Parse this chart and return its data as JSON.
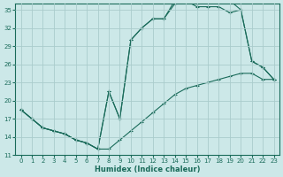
{
  "xlabel": "Humidex (Indice chaleur)",
  "ylabel": "",
  "xlim": [
    -0.5,
    23.5
  ],
  "ylim": [
    11,
    36
  ],
  "yticks": [
    11,
    14,
    17,
    20,
    23,
    26,
    29,
    32,
    35
  ],
  "xticks": [
    0,
    1,
    2,
    3,
    4,
    5,
    6,
    7,
    8,
    9,
    10,
    11,
    12,
    13,
    14,
    15,
    16,
    17,
    18,
    19,
    20,
    21,
    22,
    23
  ],
  "bg_color": "#cce8e8",
  "grid_color": "#aacccc",
  "line_color": "#1a6b5a",
  "line1_x": [
    0,
    1,
    2,
    3,
    4,
    5,
    6,
    7,
    8,
    9,
    10,
    11,
    12,
    13,
    14,
    15,
    16,
    17,
    18,
    19,
    20,
    21,
    22,
    23
  ],
  "line1_y": [
    18.5,
    17.0,
    15.5,
    15.0,
    14.5,
    13.5,
    13.0,
    12.0,
    12.0,
    13.5,
    15.0,
    16.5,
    18.0,
    19.5,
    21.0,
    22.0,
    22.5,
    23.0,
    23.5,
    24.0,
    24.5,
    24.5,
    23.5,
    23.5
  ],
  "line2_x": [
    0,
    1,
    2,
    3,
    4,
    5,
    6,
    7,
    8,
    9,
    10,
    11,
    12,
    13,
    14,
    15,
    16,
    17,
    18,
    19,
    20,
    21,
    22,
    23
  ],
  "line2_y": [
    18.5,
    17.0,
    15.5,
    15.0,
    14.5,
    13.5,
    13.0,
    12.0,
    21.5,
    17.0,
    30.0,
    32.0,
    33.5,
    33.5,
    36.0,
    36.5,
    35.5,
    35.5,
    35.5,
    34.5,
    35.0,
    26.5,
    25.5,
    23.5
  ],
  "line3_x": [
    0,
    1,
    2,
    3,
    4,
    5,
    6,
    7,
    8,
    9,
    10,
    11,
    12,
    13,
    14,
    15,
    16,
    17,
    18,
    19,
    20,
    21,
    22,
    23
  ],
  "line3_y": [
    18.5,
    17.0,
    15.5,
    15.0,
    14.5,
    13.5,
    13.0,
    12.0,
    21.5,
    17.0,
    30.0,
    32.0,
    33.5,
    33.5,
    36.5,
    37.0,
    36.0,
    36.5,
    37.0,
    36.5,
    35.0,
    26.5,
    25.5,
    23.5
  ]
}
